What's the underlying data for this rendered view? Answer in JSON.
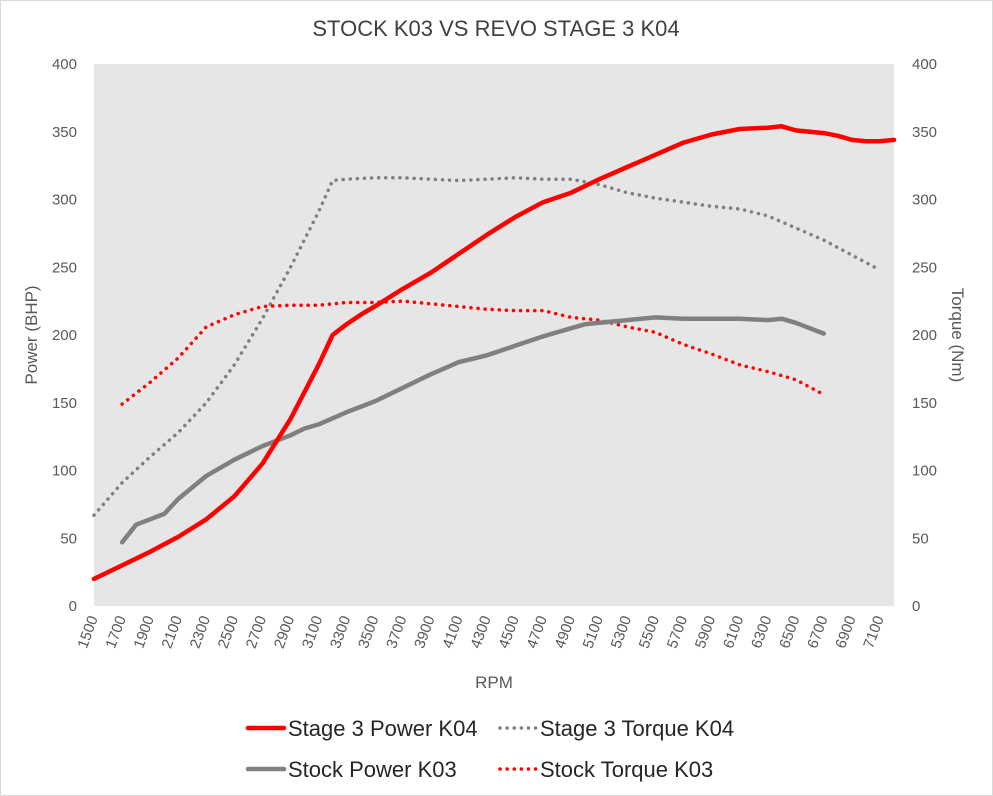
{
  "chart_data": {
    "type": "line",
    "title": "STOCK K03 VS REVO STAGE 3 K04",
    "xlabel": "RPM",
    "ylabel_left": "Power (BHP)",
    "ylabel_right": "Torque (Nm)",
    "ylim_left": [
      0,
      400
    ],
    "ylim_right": [
      0,
      400
    ],
    "yticks_left": [
      "0",
      "50",
      "100",
      "150",
      "200",
      "250",
      "300",
      "350",
      "400"
    ],
    "yticks_right": [
      "0",
      "50",
      "100",
      "150",
      "200",
      "250",
      "300",
      "350",
      "400"
    ],
    "xlim": [
      1500,
      7200
    ],
    "xticks": [
      "1500",
      "1700",
      "1900",
      "2100",
      "2300",
      "2500",
      "2700",
      "2900",
      "3100",
      "3300",
      "3500",
      "3700",
      "3900",
      "4100",
      "4300",
      "4500",
      "4700",
      "4900",
      "5100",
      "5300",
      "5500",
      "5700",
      "5900",
      "6100",
      "6300",
      "6500",
      "6700",
      "6900",
      "7100"
    ],
    "grid": false,
    "plot_background": "#e6e6e6",
    "legend_position": "bottom",
    "series": [
      {
        "name": "Stage 3 Power K04",
        "axis": "left",
        "style": "solid",
        "color": "#ff0000",
        "x": [
          1500,
          1700,
          1900,
          2100,
          2300,
          2500,
          2700,
          2900,
          3100,
          3200,
          3300,
          3400,
          3500,
          3700,
          3900,
          4100,
          4300,
          4500,
          4700,
          4900,
          5100,
          5300,
          5500,
          5700,
          5900,
          6100,
          6300,
          6400,
          6500,
          6600,
          6700,
          6800,
          6900,
          7000,
          7100,
          7200
        ],
        "values": [
          20,
          30,
          40,
          51,
          64,
          81,
          105,
          138,
          178,
          200,
          208,
          215,
          221,
          234,
          246,
          260,
          274,
          287,
          298,
          305,
          315,
          324,
          333,
          342,
          348,
          352,
          353,
          354,
          351,
          350,
          349,
          347,
          344,
          343,
          343,
          344
        ]
      },
      {
        "name": "Stage 3 Torque K04",
        "axis": "right",
        "style": "dotted",
        "color": "#808080",
        "x": [
          1500,
          1700,
          1900,
          2100,
          2300,
          2500,
          2700,
          2900,
          3100,
          3200,
          3300,
          3500,
          3700,
          3900,
          4100,
          4300,
          4500,
          4700,
          4900,
          5100,
          5300,
          5500,
          5700,
          5900,
          6100,
          6300,
          6500,
          6700,
          6900,
          7100
        ],
        "values": [
          67,
          91,
          110,
          128,
          150,
          178,
          212,
          250,
          291,
          314,
          315,
          316,
          316,
          315,
          314,
          315,
          316,
          315,
          315,
          311,
          305,
          301,
          298,
          295,
          293,
          288,
          279,
          270,
          259,
          248
        ]
      },
      {
        "name": "Stock Power K03",
        "axis": "left",
        "style": "solid",
        "color": "#808080",
        "x": [
          1700,
          1800,
          1900,
          2000,
          2100,
          2300,
          2500,
          2700,
          2900,
          3000,
          3100,
          3300,
          3500,
          3700,
          3900,
          4100,
          4300,
          4500,
          4700,
          4900,
          5000,
          5100,
          5300,
          5500,
          5700,
          5900,
          6100,
          6300,
          6400,
          6500,
          6600,
          6700
        ],
        "values": [
          47,
          60,
          64,
          68,
          79,
          96,
          108,
          118,
          126,
          131,
          134,
          143,
          151,
          161,
          171,
          180,
          185,
          192,
          199,
          205,
          208,
          209,
          211,
          213,
          212,
          212,
          212,
          211,
          212,
          209,
          205,
          201
        ]
      },
      {
        "name": "Stock Torque K03",
        "axis": "right",
        "style": "dotted",
        "color": "#ff0000",
        "x": [
          1700,
          1900,
          2100,
          2300,
          2500,
          2700,
          2900,
          3100,
          3300,
          3500,
          3700,
          3900,
          4100,
          4300,
          4500,
          4700,
          4900,
          5100,
          5300,
          5500,
          5700,
          5900,
          6100,
          6300,
          6500,
          6700
        ],
        "values": [
          149,
          165,
          183,
          206,
          215,
          221,
          222,
          222,
          224,
          224,
          225,
          223,
          221,
          219,
          218,
          218,
          213,
          211,
          206,
          202,
          193,
          186,
          178,
          173,
          167,
          156
        ]
      }
    ]
  }
}
